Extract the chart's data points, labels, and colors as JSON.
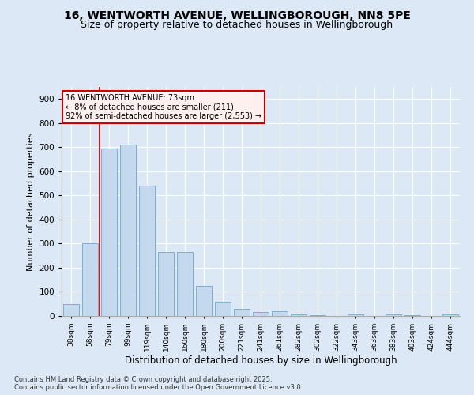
{
  "title": "16, WENTWORTH AVENUE, WELLINGBOROUGH, NN8 5PE",
  "subtitle": "Size of property relative to detached houses in Wellingborough",
  "xlabel": "Distribution of detached houses by size in Wellingborough",
  "ylabel": "Number of detached properties",
  "footer_line1": "Contains HM Land Registry data © Crown copyright and database right 2025.",
  "footer_line2": "Contains public sector information licensed under the Open Government Licence v3.0.",
  "categories": [
    "38sqm",
    "58sqm",
    "79sqm",
    "99sqm",
    "119sqm",
    "140sqm",
    "160sqm",
    "180sqm",
    "200sqm",
    "221sqm",
    "241sqm",
    "261sqm",
    "282sqm",
    "302sqm",
    "322sqm",
    "343sqm",
    "363sqm",
    "383sqm",
    "403sqm",
    "424sqm",
    "444sqm"
  ],
  "values": [
    48,
    300,
    695,
    710,
    540,
    265,
    265,
    125,
    60,
    28,
    15,
    20,
    5,
    2,
    0,
    8,
    0,
    5,
    2,
    0,
    5
  ],
  "bar_color": "#c5d9ee",
  "bar_edge_color": "#7aafd4",
  "vline_x_index": 1.5,
  "vline_color": "#cc0000",
  "annotation_text": "16 WENTWORTH AVENUE: 73sqm\n← 8% of detached houses are smaller (211)\n92% of semi-detached houses are larger (2,553) →",
  "annotation_box_facecolor": "#fff0f0",
  "annotation_box_edgecolor": "#cc0000",
  "ylim": [
    0,
    950
  ],
  "yticks": [
    0,
    100,
    200,
    300,
    400,
    500,
    600,
    700,
    800,
    900
  ],
  "bg_color": "#dce8f5",
  "grid_color": "#ffffff",
  "title_fontsize": 10,
  "subtitle_fontsize": 9,
  "footer_fontsize": 6,
  "ylabel_fontsize": 8,
  "xlabel_fontsize": 8.5
}
